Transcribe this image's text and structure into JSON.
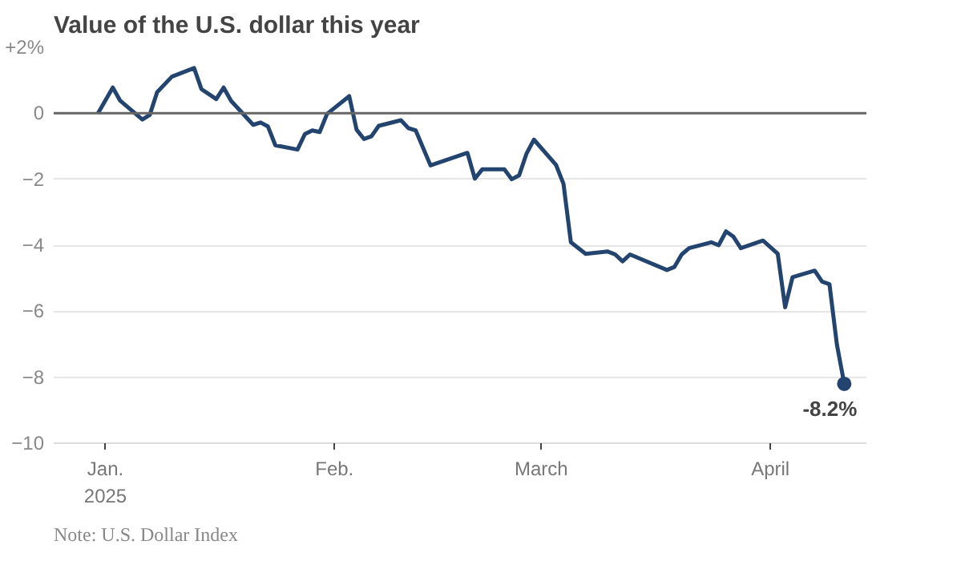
{
  "chart_data": {
    "type": "line",
    "title": "Value of the U.S. dollar this year",
    "x": [
      "2024-12-31",
      "2025-01-02",
      "2025-01-03",
      "2025-01-06",
      "2025-01-07",
      "2025-01-08",
      "2025-01-10",
      "2025-01-13",
      "2025-01-14",
      "2025-01-16",
      "2025-01-17",
      "2025-01-18",
      "2025-01-21",
      "2025-01-22",
      "2025-01-23",
      "2025-01-24",
      "2025-01-27",
      "2025-01-28",
      "2025-01-29",
      "2025-01-30",
      "2025-01-31",
      "2025-02-03",
      "2025-02-04",
      "2025-02-05",
      "2025-02-06",
      "2025-02-07",
      "2025-02-10",
      "2025-02-11",
      "2025-02-12",
      "2025-02-14",
      "2025-02-19",
      "2025-02-20",
      "2025-02-21",
      "2025-02-24",
      "2025-02-25",
      "2025-02-26",
      "2025-02-27",
      "2025-02-28",
      "2025-03-03",
      "2025-03-04",
      "2025-03-05",
      "2025-03-07",
      "2025-03-10",
      "2025-03-11",
      "2025-03-12",
      "2025-03-13",
      "2025-03-18",
      "2025-03-19",
      "2025-03-20",
      "2025-03-21",
      "2025-03-24",
      "2025-03-25",
      "2025-03-26",
      "2025-03-27",
      "2025-03-28",
      "2025-03-31",
      "2025-04-02",
      "2025-04-03",
      "2025-04-04",
      "2025-04-07",
      "2025-04-08",
      "2025-04-09",
      "2025-04-10",
      "2025-04-11"
    ],
    "series": [
      {
        "color": "#23446f",
        "values": [
          0,
          0.78,
          0.38,
          -0.19,
          -0.05,
          0.64,
          1.11,
          1.37,
          0.73,
          0.43,
          0.78,
          0.38,
          -0.35,
          -0.28,
          -0.4,
          -0.97,
          -1.1,
          -0.63,
          -0.52,
          -0.57,
          -0.02,
          0.52,
          -0.5,
          -0.78,
          -0.7,
          -0.38,
          -0.21,
          -0.45,
          -0.52,
          -1.58,
          -1.2,
          -1.98,
          -1.7,
          -1.7,
          -2.0,
          -1.88,
          -1.22,
          -0.8,
          -1.57,
          -2.14,
          -3.91,
          -4.26,
          -4.19,
          -4.28,
          -4.49,
          -4.28,
          -4.75,
          -4.66,
          -4.28,
          -4.09,
          -3.91,
          -4.0,
          -3.58,
          -3.74,
          -4.09,
          -3.86,
          -4.26,
          -5.88,
          -4.97,
          -4.77,
          -5.1,
          -5.18,
          -7.0,
          -8.2
        ]
      }
    ],
    "xlim": [
      "2024-12-25",
      "2025-04-14"
    ],
    "xticks": [
      {
        "value": "2025-01-01",
        "label": "Jan.\n2025"
      },
      {
        "value": "2025-02-01",
        "label": "Feb."
      },
      {
        "value": "2025-03-01",
        "label": "March"
      },
      {
        "value": "2025-04-01",
        "label": "April"
      }
    ],
    "ylim": [
      -10,
      2
    ],
    "yticks": [
      {
        "value": 2,
        "label": "+2%"
      },
      0,
      {
        "value": -2,
        "label": "−2"
      },
      {
        "value": -4,
        "label": "−4"
      },
      {
        "value": -6,
        "label": "−6"
      },
      {
        "value": -8,
        "label": "−8"
      },
      {
        "value": -10,
        "label": "−10"
      }
    ],
    "grid": "y",
    "ref_lines": [
      {
        "axis": "y",
        "value": 0,
        "color": "#666666"
      }
    ],
    "annotations": [
      {
        "text": "-8.2%",
        "x": "2025-04-11",
        "y": -8.2
      },
      "Note: U.S. Dollar Index"
    ]
  }
}
